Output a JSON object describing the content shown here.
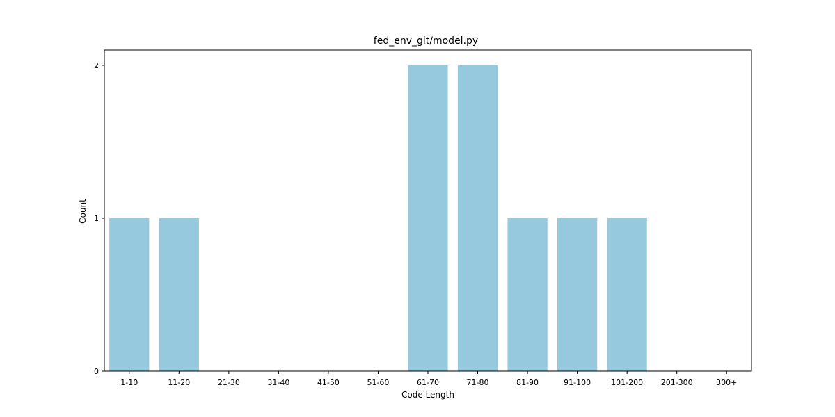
{
  "chart_data": {
    "type": "bar",
    "title": "fed_env_git/model.py",
    "xlabel": "Code Length",
    "ylabel": "Count",
    "categories": [
      "1-10",
      "11-20",
      "21-30",
      "31-40",
      "41-50",
      "51-60",
      "61-70",
      "71-80",
      "81-90",
      "91-100",
      "101-200",
      "201-300",
      "300+"
    ],
    "values": [
      1,
      1,
      0,
      0,
      0,
      0,
      2,
      2,
      1,
      1,
      1,
      0,
      0
    ],
    "ylim": [
      0,
      2.1
    ],
    "yticks": [
      0,
      1,
      2
    ],
    "bar_color": "#96c9de",
    "grid": false,
    "legend": false
  }
}
